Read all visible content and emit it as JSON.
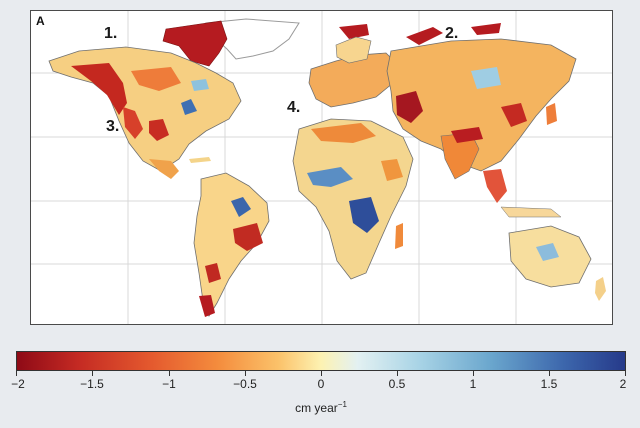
{
  "panel_label": "A",
  "region_labels": [
    "1.",
    "2.",
    "3.",
    "4."
  ],
  "colorbar": {
    "ticks": [
      "−2",
      "−1.5",
      "−1",
      "−0.5",
      "0",
      "0.5",
      "1",
      "1.5",
      "2"
    ],
    "units_text": "cm year",
    "units_exponent": "−1",
    "range": [
      -2,
      2
    ],
    "colors": {
      "negative_max": "#8e0a16",
      "neutral": "#fdf2b2",
      "positive_max": "#263a8a"
    }
  }
}
